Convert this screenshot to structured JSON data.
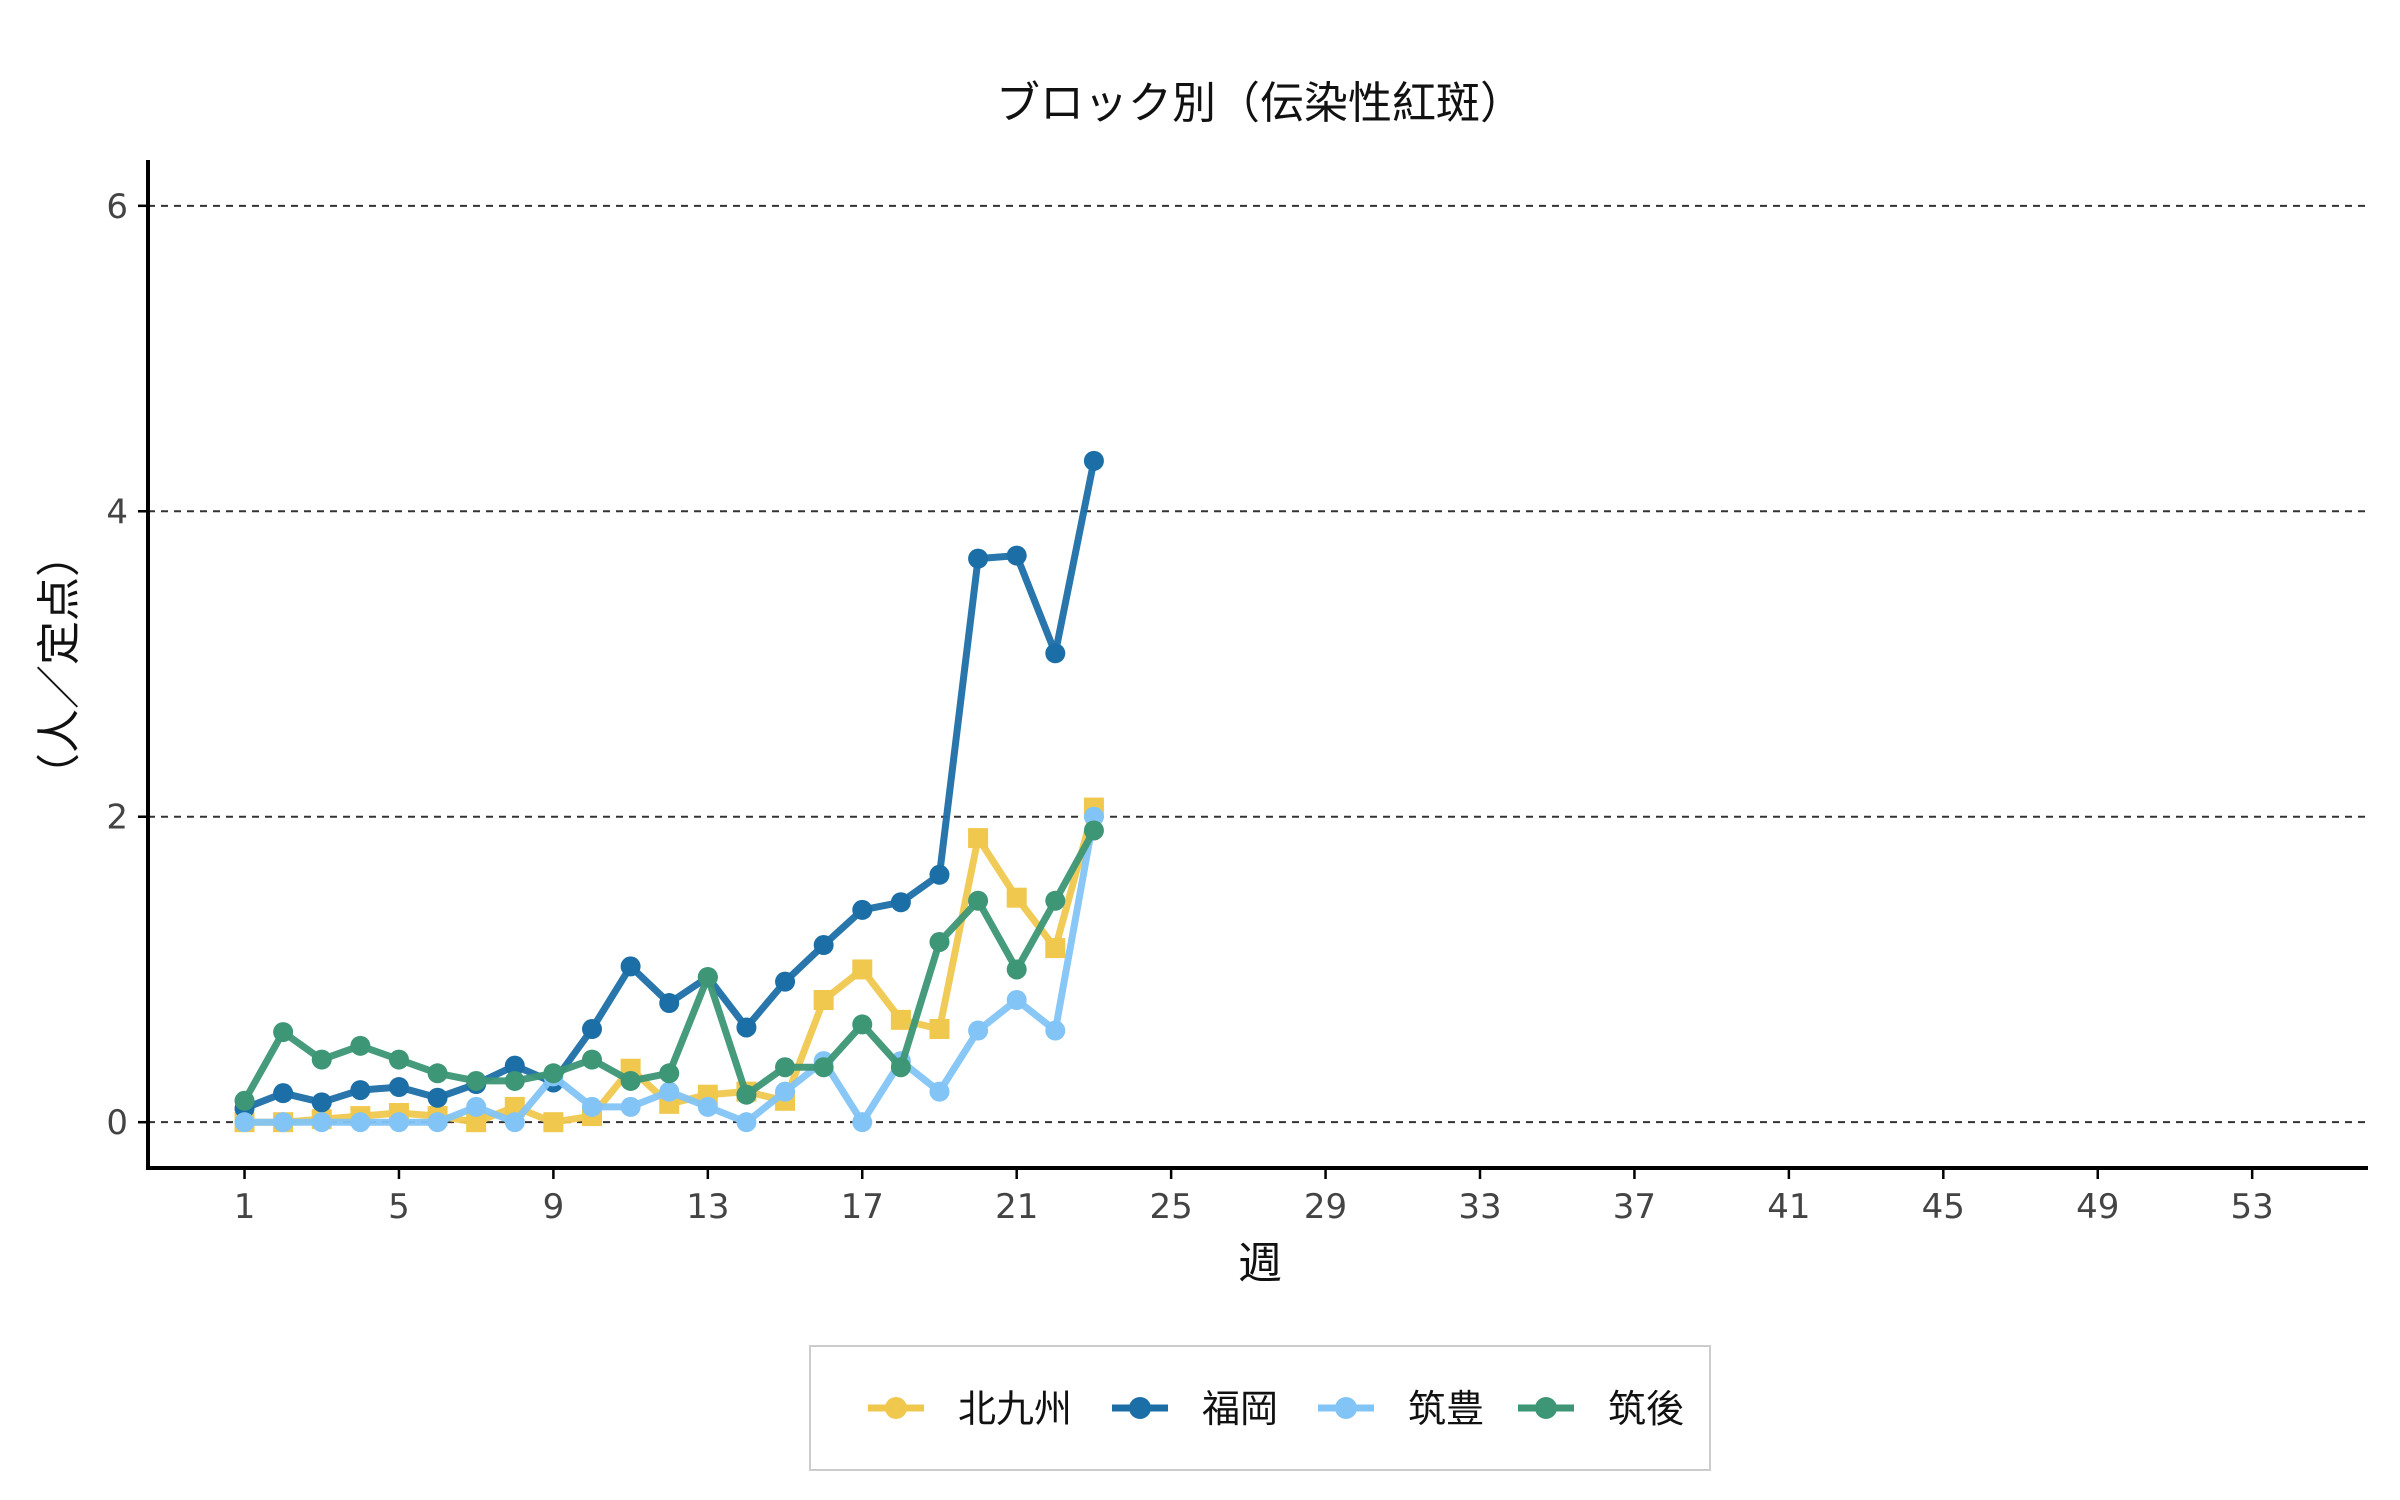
{
  "chart_data": {
    "type": "line",
    "title": "ブロック別（伝染性紅斑）",
    "xlabel": "週",
    "ylabel": "（人／定点）",
    "x_ticks": [
      1,
      5,
      9,
      13,
      17,
      21,
      25,
      29,
      33,
      37,
      41,
      45,
      49,
      53
    ],
    "y_ticks": [
      0,
      2,
      4,
      6
    ],
    "xlim": [
      -1.5,
      56
    ],
    "ylim": [
      -0.3,
      6.3
    ],
    "grid": "horizontal dashed",
    "legend_position": "bottom",
    "x": [
      1,
      2,
      3,
      4,
      5,
      6,
      7,
      8,
      9,
      10,
      11,
      12,
      13,
      14,
      15,
      16,
      17,
      18,
      19,
      20,
      21,
      22,
      23
    ],
    "series": [
      {
        "name": "北九州",
        "color": "#f0c84e",
        "marker": "square",
        "values": [
          0.0,
          0.0,
          0.02,
          0.04,
          0.06,
          0.04,
          0.0,
          0.1,
          0.0,
          0.04,
          0.35,
          0.12,
          0.18,
          0.2,
          0.14,
          0.8,
          1.0,
          0.67,
          0.61,
          1.86,
          1.47,
          1.14,
          2.06
        ]
      },
      {
        "name": "福岡",
        "color": "#1c6fa6",
        "marker": "circle",
        "values": [
          0.09,
          0.19,
          0.13,
          0.21,
          0.23,
          0.16,
          0.25,
          0.37,
          0.26,
          0.61,
          1.02,
          0.78,
          0.95,
          0.62,
          0.92,
          1.16,
          1.39,
          1.44,
          1.62,
          3.69,
          3.71,
          3.07,
          4.33
        ]
      },
      {
        "name": "筑豊",
        "color": "#82c4f5",
        "marker": "circle",
        "values": [
          0.0,
          0.0,
          0.0,
          0.0,
          0.0,
          0.0,
          0.1,
          0.0,
          0.3,
          0.1,
          0.1,
          0.2,
          0.1,
          0.0,
          0.2,
          0.4,
          0.0,
          0.4,
          0.2,
          0.6,
          0.8,
          0.6,
          2.0
        ]
      },
      {
        "name": "筑後",
        "color": "#3d9676",
        "marker": "circle",
        "values": [
          0.14,
          0.59,
          0.41,
          0.5,
          0.41,
          0.32,
          0.27,
          0.27,
          0.32,
          0.41,
          0.27,
          0.32,
          0.95,
          0.18,
          0.36,
          0.36,
          0.64,
          0.36,
          1.18,
          1.45,
          1.0,
          1.45,
          1.91
        ]
      }
    ]
  }
}
